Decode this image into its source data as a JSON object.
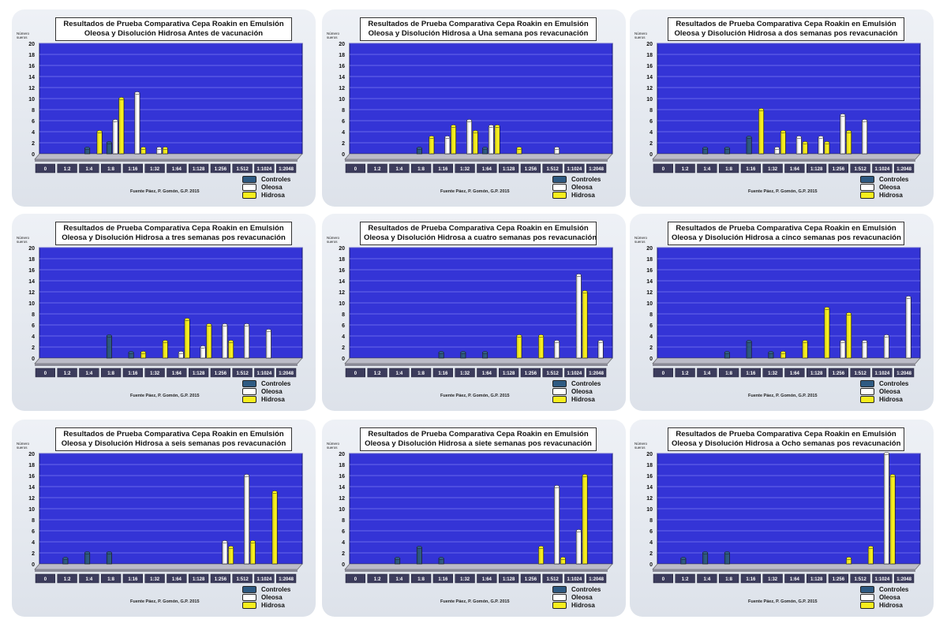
{
  "common": {
    "ylabel": "Número sueros",
    "source": "Fuente Páez, P. Gomón, G.P. 2015",
    "categories": [
      "0",
      "1:2",
      "1:4",
      "1:8",
      "1:16",
      "1:32",
      "1:64",
      "1:128",
      "1:256",
      "1:512",
      "1:1024",
      "1:2048"
    ],
    "yticks": [
      "0",
      "2",
      "4",
      "6",
      "8",
      "10",
      "12",
      "14",
      "16",
      "18",
      "20"
    ],
    "legend": [
      "Controles",
      "Oleosa",
      "Hidrosa"
    ],
    "colors": {
      "Controles": "#2e5a82",
      "Oleosa": "#ffffff",
      "Hidrosa": "#f7ee1e",
      "plot_bg": "#3434d6",
      "grid": "#7b7bef",
      "floor": "#bcbcc8"
    }
  },
  "chart_data": [
    {
      "type": "bar",
      "title_line1": "Resultados de Prueba Comparativa Cepa Roakin en Emulsión",
      "title_line2": "Oleosa y Disolución Hidrosa Antes de vacunación",
      "ylim": [
        0,
        20
      ],
      "categories": [
        "0",
        "1:2",
        "1:4",
        "1:8",
        "1:16",
        "1:32",
        "1:64",
        "1:128",
        "1:256",
        "1:512",
        "1:1024",
        "1:2048"
      ],
      "series": [
        {
          "name": "Controles",
          "values": [
            0,
            0,
            1,
            2,
            0,
            0,
            0,
            0,
            0,
            0,
            0,
            0
          ]
        },
        {
          "name": "Oleosa",
          "values": [
            0,
            0,
            0,
            6,
            11,
            1,
            0,
            0,
            0,
            0,
            0,
            0
          ]
        },
        {
          "name": "Hidrosa",
          "values": [
            0,
            0,
            4,
            10,
            1,
            1,
            0,
            0,
            0,
            0,
            0,
            0
          ]
        }
      ]
    },
    {
      "type": "bar",
      "title_line1": "Resultados de Prueba Comparativa Cepa Roakin en Emulsión",
      "title_line2": "Oleosa y Disolución Hidrosa a Una semana pos revacunación",
      "ylim": [
        0,
        20
      ],
      "categories": [
        "0",
        "1:2",
        "1:4",
        "1:8",
        "1:16",
        "1:32",
        "1:64",
        "1:128",
        "1:256",
        "1:512",
        "1:1024",
        "1:2048"
      ],
      "series": [
        {
          "name": "Controles",
          "values": [
            0,
            0,
            0,
            1,
            0,
            0,
            1,
            0,
            0,
            0,
            0,
            0
          ]
        },
        {
          "name": "Oleosa",
          "values": [
            0,
            0,
            0,
            0,
            3,
            6,
            5,
            0,
            0,
            1,
            0,
            0
          ]
        },
        {
          "name": "Hidrosa",
          "values": [
            0,
            0,
            0,
            3,
            5,
            4,
            5,
            1,
            0,
            0,
            0,
            0
          ]
        }
      ]
    },
    {
      "type": "bar",
      "title_line1": "Resultados de Prueba Comparativa Cepa Roakin en Emulsión",
      "title_line2": "Oleosa y Disolución Hidrosa a dos semanas pos revacunación",
      "ylim": [
        0,
        20
      ],
      "categories": [
        "0",
        "1:2",
        "1:4",
        "1:8",
        "1:16",
        "1:32",
        "1:64",
        "1:128",
        "1:256",
        "1:512",
        "1:1024",
        "1:2048"
      ],
      "series": [
        {
          "name": "Controles",
          "values": [
            0,
            0,
            1,
            1,
            3,
            0,
            0,
            0,
            0,
            0,
            0,
            0
          ]
        },
        {
          "name": "Oleosa",
          "values": [
            0,
            0,
            0,
            0,
            0,
            1,
            3,
            3,
            7,
            6,
            0,
            0
          ]
        },
        {
          "name": "Hidrosa",
          "values": [
            0,
            0,
            0,
            0,
            8,
            4,
            2,
            2,
            4,
            0,
            0,
            0
          ]
        }
      ]
    },
    {
      "type": "bar",
      "title_line1": "Resultados de Prueba Comparativa Cepa Roakin en Emulsión",
      "title_line2": "Oleosa y Disolución Hidrosa a tres semanas pos revacunación",
      "ylim": [
        0,
        20
      ],
      "categories": [
        "0",
        "1:2",
        "1:4",
        "1:8",
        "1:16",
        "1:32",
        "1:64",
        "1:128",
        "1:256",
        "1:512",
        "1:1024",
        "1:2048"
      ],
      "series": [
        {
          "name": "Controles",
          "values": [
            0,
            0,
            0,
            4,
            1,
            0,
            0,
            0,
            0,
            0,
            0,
            0
          ]
        },
        {
          "name": "Oleosa",
          "values": [
            0,
            0,
            0,
            0,
            0,
            0,
            1,
            2,
            6,
            6,
            5,
            0
          ]
        },
        {
          "name": "Hidrosa",
          "values": [
            0,
            0,
            0,
            0,
            1,
            3,
            7,
            6,
            3,
            0,
            0,
            0
          ]
        }
      ]
    },
    {
      "type": "bar",
      "title_line1": "Resultados de Prueba Comparativa Cepa Roakin en Emulsión",
      "title_line2": "Oleosa y Disolución Hidrosa a cuatro semanas pos revacunación",
      "ylim": [
        0,
        20
      ],
      "categories": [
        "0",
        "1:2",
        "1:4",
        "1:8",
        "1:16",
        "1:32",
        "1:64",
        "1:128",
        "1:256",
        "1:512",
        "1:1024",
        "1:2048"
      ],
      "series": [
        {
          "name": "Controles",
          "values": [
            0,
            0,
            0,
            0,
            1,
            1,
            1,
            0,
            0,
            0,
            0,
            0
          ]
        },
        {
          "name": "Oleosa",
          "values": [
            0,
            0,
            0,
            0,
            0,
            0,
            0,
            0,
            0,
            3,
            15,
            3
          ]
        },
        {
          "name": "Hidrosa",
          "values": [
            0,
            0,
            0,
            0,
            0,
            0,
            0,
            4,
            4,
            0,
            12,
            0
          ]
        }
      ]
    },
    {
      "type": "bar",
      "title_line1": "Resultados de Prueba Comparativa Cepa Roakin en Emulsión",
      "title_line2": "Oleosa y Disolución Hidrosa a cinco semanas pos revacunación",
      "ylim": [
        0,
        20
      ],
      "categories": [
        "0",
        "1:2",
        "1:4",
        "1:8",
        "1:16",
        "1:32",
        "1:64",
        "1:128",
        "1:256",
        "1:512",
        "1:1024",
        "1:2048"
      ],
      "series": [
        {
          "name": "Controles",
          "values": [
            0,
            0,
            0,
            1,
            3,
            1,
            0,
            0,
            0,
            0,
            0,
            0
          ]
        },
        {
          "name": "Oleosa",
          "values": [
            0,
            0,
            0,
            0,
            0,
            0,
            0,
            0,
            3,
            3,
            4,
            11
          ]
        },
        {
          "name": "Hidrosa",
          "values": [
            0,
            0,
            0,
            0,
            0,
            1,
            3,
            9,
            8,
            0,
            0,
            0
          ]
        }
      ]
    },
    {
      "type": "bar",
      "title_line1": "Resultados de Prueba Comparativa Cepa Roakin en Emulsión",
      "title_line2": "Oleosa y Disolución Hidrosa a seis semanas pos revacunación",
      "ylim": [
        0,
        20
      ],
      "categories": [
        "0",
        "1:2",
        "1:4",
        "1:8",
        "1:16",
        "1:32",
        "1:64",
        "1:128",
        "1:256",
        "1:512",
        "1:1024",
        "1:2048"
      ],
      "series": [
        {
          "name": "Controles",
          "values": [
            0,
            1,
            2,
            2,
            0,
            0,
            0,
            0,
            0,
            0,
            0,
            0
          ]
        },
        {
          "name": "Oleosa",
          "values": [
            0,
            0,
            0,
            0,
            0,
            0,
            0,
            0,
            4,
            16,
            0,
            0
          ]
        },
        {
          "name": "Hidrosa",
          "values": [
            0,
            0,
            0,
            0,
            0,
            0,
            0,
            0,
            3,
            4,
            13,
            0
          ]
        }
      ]
    },
    {
      "type": "bar",
      "title_line1": "Resultados de Prueba Comparativa Cepa Roakin en Emulsión",
      "title_line2": "Oleosa y Disolución Hidrosa a siete semanas pos revacunación",
      "ylim": [
        0,
        20
      ],
      "categories": [
        "0",
        "1:2",
        "1:4",
        "1:8",
        "1:16",
        "1:32",
        "1:64",
        "1:128",
        "1:256",
        "1:512",
        "1:1024",
        "1:2048"
      ],
      "series": [
        {
          "name": "Controles",
          "values": [
            0,
            0,
            1,
            3,
            1,
            0,
            0,
            0,
            0,
            0,
            0,
            0
          ]
        },
        {
          "name": "Oleosa",
          "values": [
            0,
            0,
            0,
            0,
            0,
            0,
            0,
            0,
            0,
            14,
            6,
            0
          ]
        },
        {
          "name": "Hidrosa",
          "values": [
            0,
            0,
            0,
            0,
            0,
            0,
            0,
            0,
            3,
            1,
            16,
            0
          ]
        }
      ]
    },
    {
      "type": "bar",
      "title_line1": "Resultados de Prueba Comparativa Cepa Roakin en Emulsión",
      "title_line2": "Oleosa y Disolución Hidrosa a Ocho semanas pos revacunación",
      "ylim": [
        0,
        20
      ],
      "categories": [
        "0",
        "1:2",
        "1:4",
        "1:8",
        "1:16",
        "1:32",
        "1:64",
        "1:128",
        "1:256",
        "1:512",
        "1:1024",
        "1:2048"
      ],
      "series": [
        {
          "name": "Controles",
          "values": [
            0,
            1,
            2,
            2,
            0,
            0,
            0,
            0,
            0,
            0,
            0,
            0
          ]
        },
        {
          "name": "Oleosa",
          "values": [
            0,
            0,
            0,
            0,
            0,
            0,
            0,
            0,
            0,
            0,
            20,
            0
          ]
        },
        {
          "name": "Hidrosa",
          "values": [
            0,
            0,
            0,
            0,
            0,
            0,
            0,
            0,
            1,
            3,
            16,
            0
          ]
        }
      ]
    }
  ]
}
